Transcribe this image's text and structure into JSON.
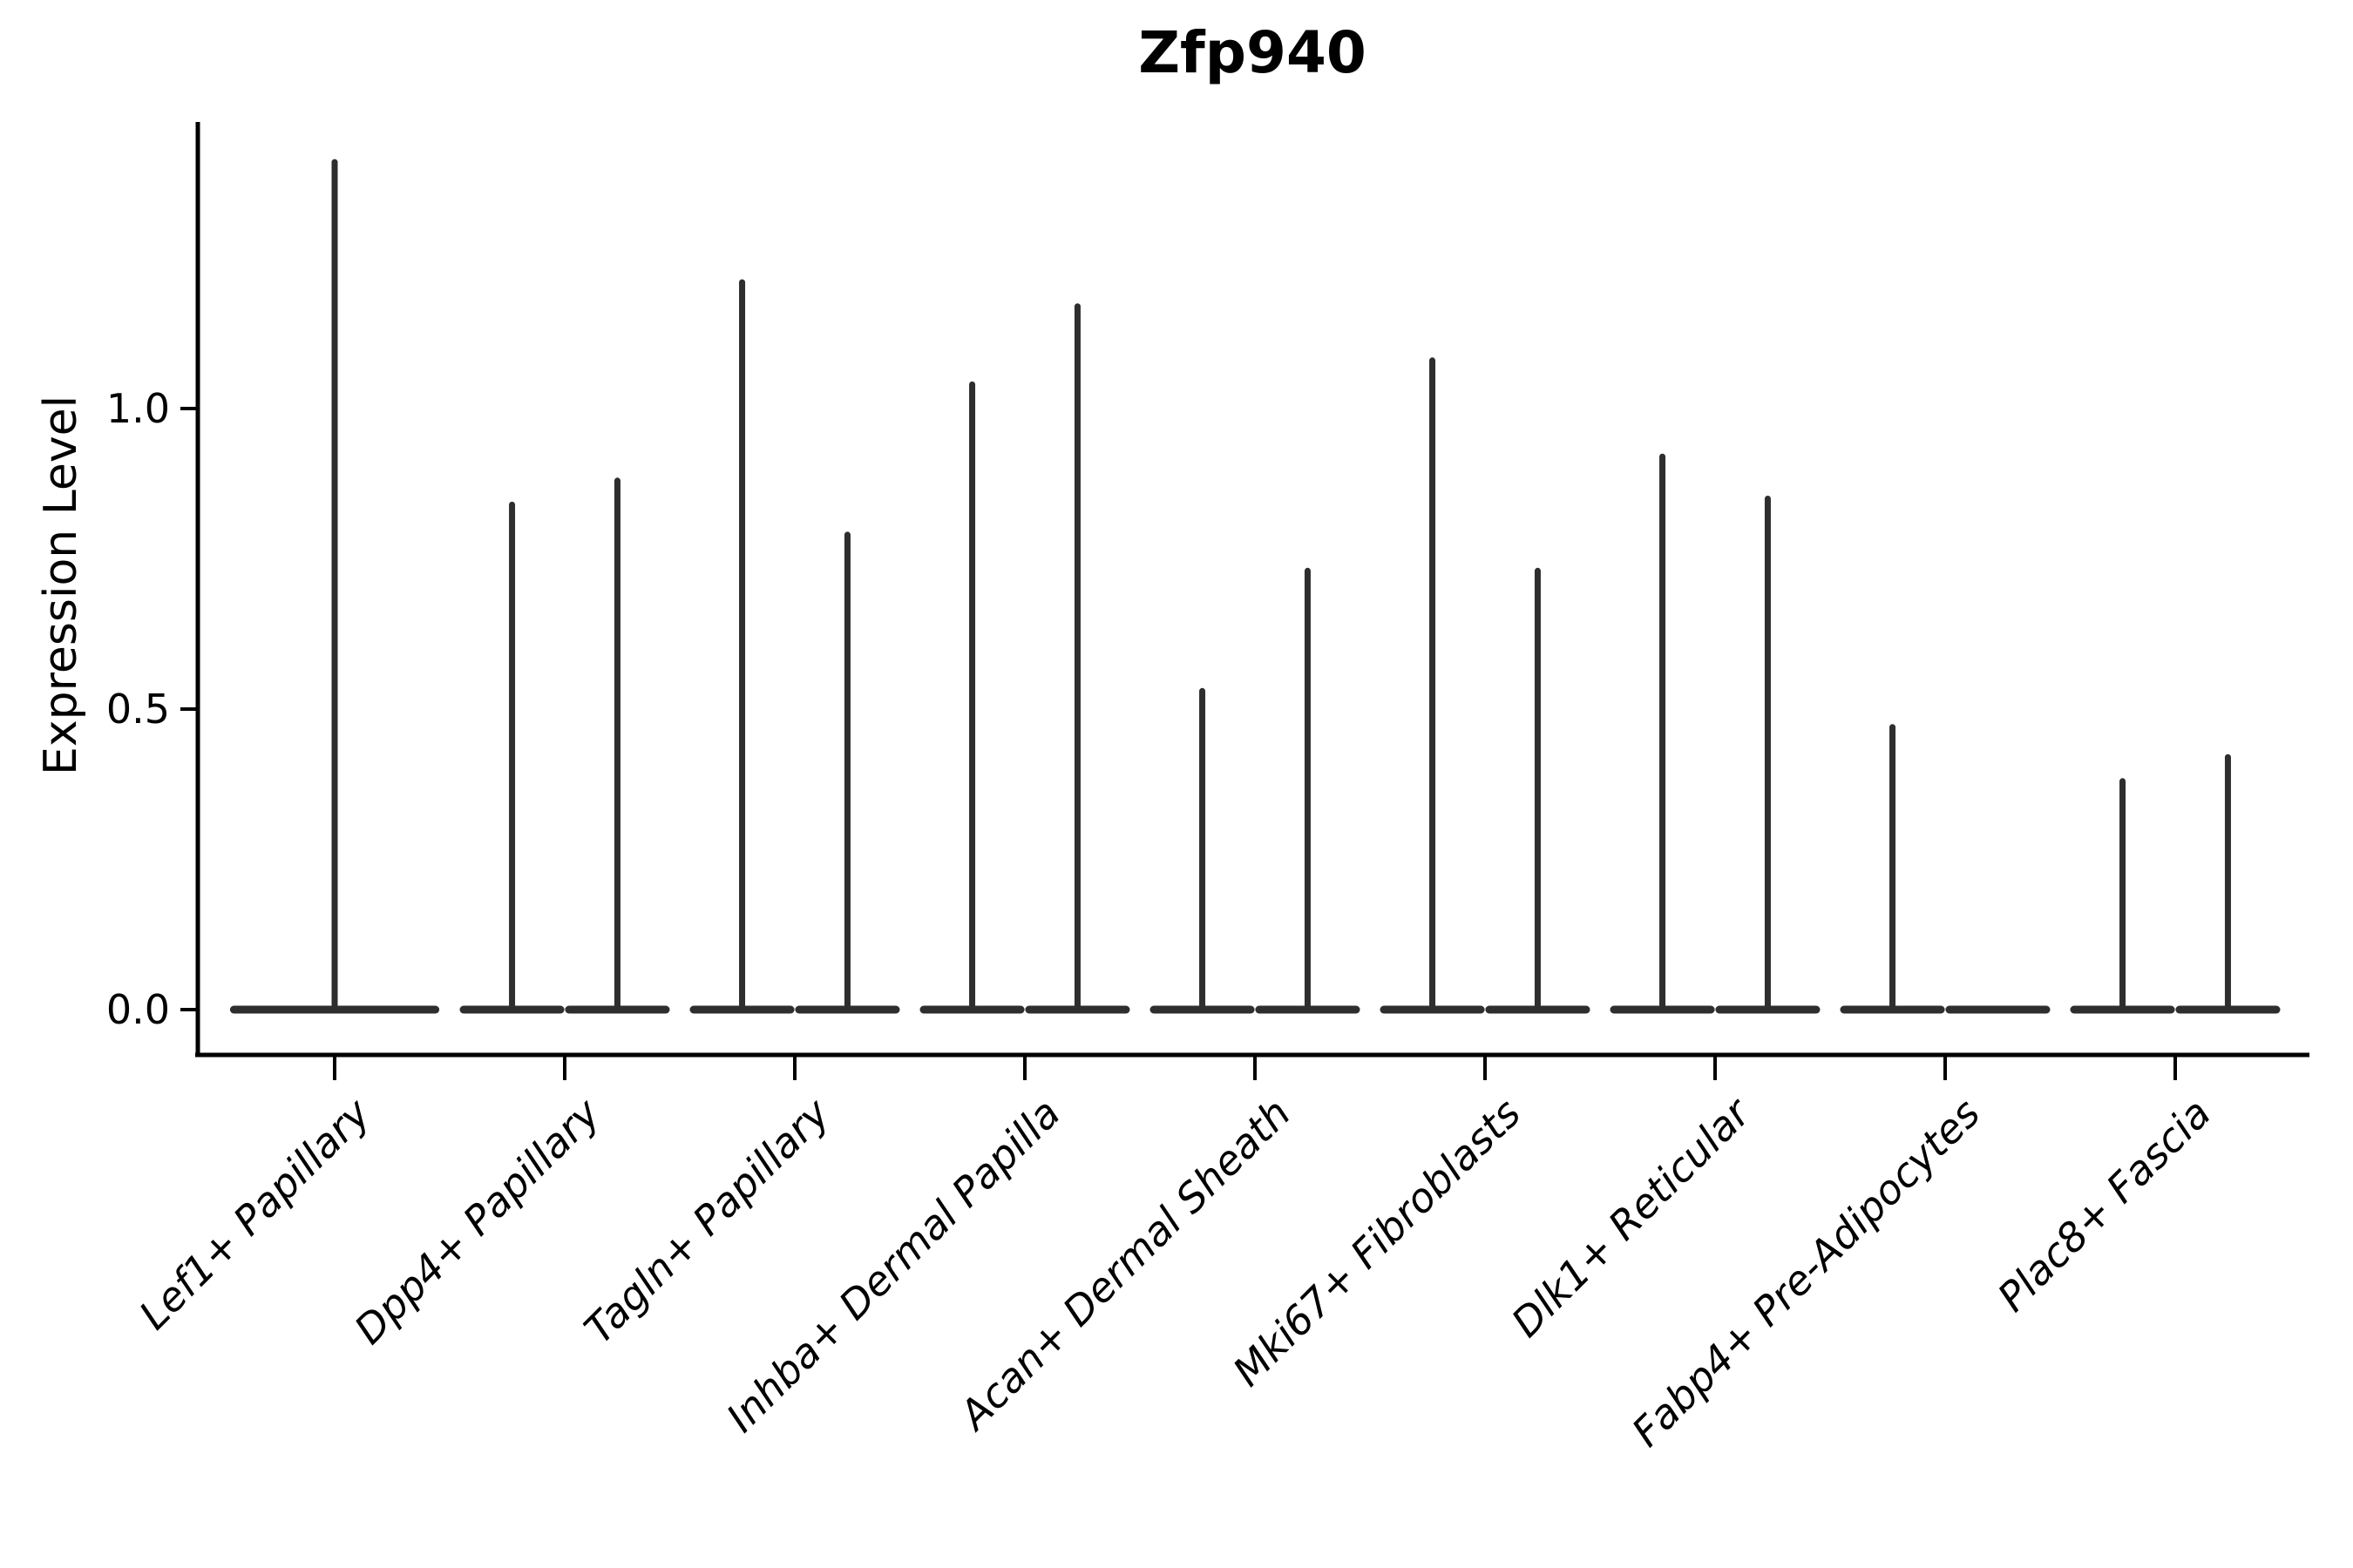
{
  "figure": {
    "title": "Zfp940",
    "ylabel": "Expression Level"
  },
  "chart_data": {
    "type": "violin",
    "title": "Zfp940",
    "xlabel": "",
    "ylabel": "Expression Level",
    "ytick_labels": [
      "0.0",
      "0.5",
      "1.0"
    ],
    "ytick_values": [
      0.0,
      0.5,
      1.0
    ],
    "ylim": [
      0.0,
      1.47
    ],
    "grid": false,
    "legend": "none",
    "violin_color": "#2e2e2e",
    "axis_color": "#000000",
    "background": "#ffffff",
    "description": "Violin plot of Zfp940 expression; each violin is flattened at 0 with a thin density tail reaching the group maximum.",
    "categories": [
      "Lef1+ Papillary",
      "Dpp4+ Papillary",
      "Tagln+ Papillary",
      "Inhba+ Dermal Papilla",
      "Acan+ Dermal Sheath",
      "Mki67+ Fibroblasts",
      "Dlk1+ Reticular",
      "Fabp4+ Pre-Adipocytes",
      "Plac8+ Fascia"
    ],
    "groups": [
      {
        "category": "Lef1+ Papillary",
        "violins": [
          {
            "offset": 0.0,
            "width": 0.91,
            "max": 1.41
          }
        ]
      },
      {
        "category": "Dpp4+ Papillary",
        "violins": [
          {
            "offset": -0.229,
            "width": 0.455,
            "max": 0.84
          },
          {
            "offset": 0.229,
            "width": 0.455,
            "max": 0.88
          }
        ]
      },
      {
        "category": "Tagln+ Papillary",
        "violins": [
          {
            "offset": -0.229,
            "width": 0.455,
            "max": 1.21
          },
          {
            "offset": 0.229,
            "width": 0.455,
            "max": 0.79
          }
        ]
      },
      {
        "category": "Inhba+ Dermal Papilla",
        "violins": [
          {
            "offset": -0.229,
            "width": 0.455,
            "max": 1.04
          },
          {
            "offset": 0.229,
            "width": 0.455,
            "max": 1.17
          }
        ]
      },
      {
        "category": "Acan+ Dermal Sheath",
        "violins": [
          {
            "offset": -0.229,
            "width": 0.455,
            "max": 0.53
          },
          {
            "offset": 0.229,
            "width": 0.455,
            "max": 0.73
          }
        ]
      },
      {
        "category": "Mki67+ Fibroblasts",
        "violins": [
          {
            "offset": -0.229,
            "width": 0.455,
            "max": 1.08
          },
          {
            "offset": 0.229,
            "width": 0.455,
            "max": 0.73
          }
        ]
      },
      {
        "category": "Dlk1+ Reticular",
        "violins": [
          {
            "offset": -0.229,
            "width": 0.455,
            "max": 0.92
          },
          {
            "offset": 0.229,
            "width": 0.455,
            "max": 0.85
          }
        ]
      },
      {
        "category": "Fabp4+ Pre-Adipocytes",
        "violins": [
          {
            "offset": -0.229,
            "width": 0.455,
            "max": 0.47
          },
          {
            "offset": 0.229,
            "width": 0.455,
            "max": 0.0
          }
        ]
      },
      {
        "category": "Plac8+ Fascia",
        "violins": [
          {
            "offset": -0.229,
            "width": 0.455,
            "max": 0.38
          },
          {
            "offset": 0.229,
            "width": 0.455,
            "max": 0.42
          }
        ]
      }
    ]
  }
}
